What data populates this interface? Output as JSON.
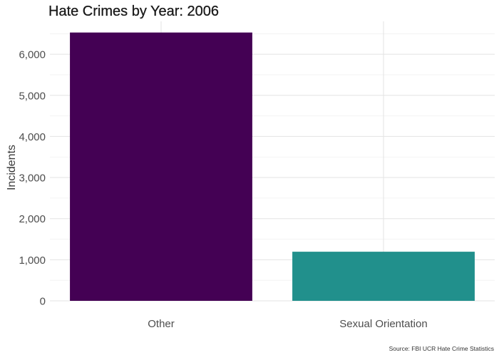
{
  "chart_data": {
    "type": "bar",
    "title": "Hate Crimes by Year: 2006",
    "xlabel": "",
    "ylabel": "Incidents",
    "caption": "Source: FBI UCR Hate Crime Statistics",
    "categories": [
      "Other",
      "Sexual Orientation"
    ],
    "values": [
      6529,
      1195
    ],
    "colors": [
      "#440154",
      "#21908C"
    ],
    "ylim": [
      0,
      6800
    ],
    "yticks": [
      0,
      1000,
      2000,
      3000,
      4000,
      5000,
      6000
    ],
    "ytick_labels": [
      "0",
      "1,000",
      "2,000",
      "3,000",
      "4,000",
      "5,000",
      "6,000"
    ],
    "grid": true,
    "legend": "none"
  }
}
